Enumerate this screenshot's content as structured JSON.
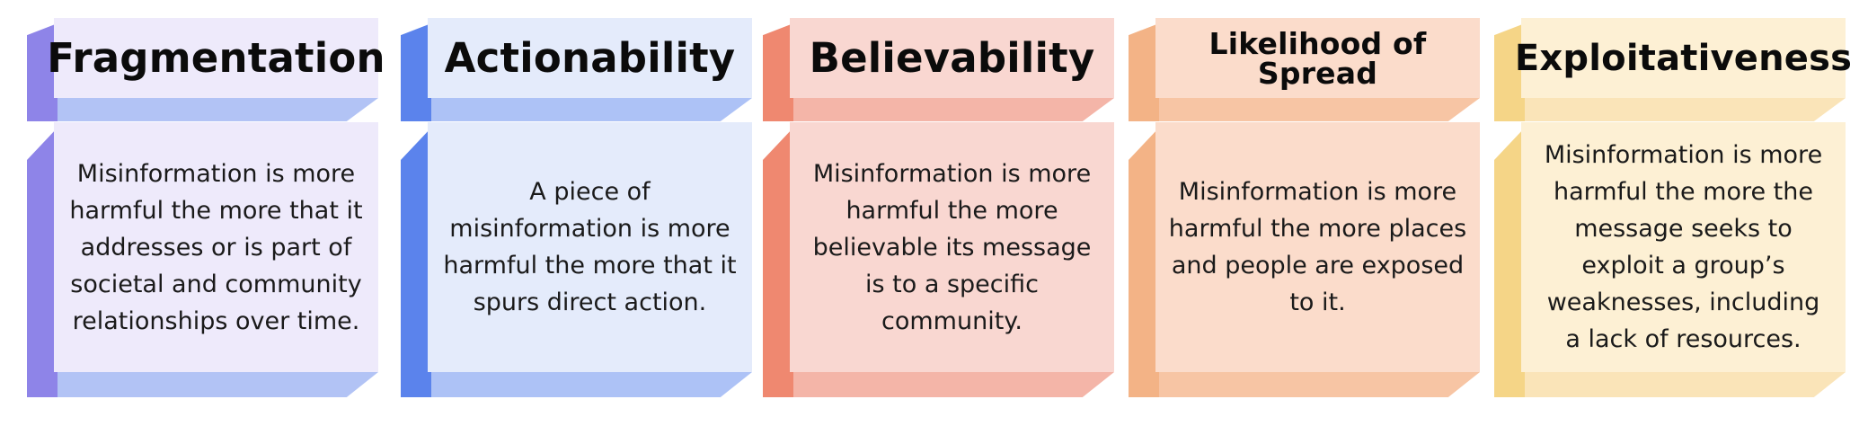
{
  "criteria": [
    {
      "title": "Fragmentation",
      "description": "Misinformation is more\nharmful the more that it\naddresses or is part of\nsocietal and community\nrelationships over time.",
      "colors": {
        "face": "#eeeafb",
        "side": "#8e84e8",
        "bottom": "#b2c3f5"
      }
    },
    {
      "title": "Actionability",
      "description": "A piece of\nmisinformation is more\nharmful the more that it\nspurs direct action.",
      "colors": {
        "face": "#e4ebfb",
        "side": "#5b83ec",
        "bottom": "#adc2f6"
      }
    },
    {
      "title": "Believability",
      "description": "Misinformation is more\nharmful the more\nbelievable its message\nis to a specific\ncommunity.",
      "colors": {
        "face": "#f9d7d1",
        "side": "#ef8870",
        "bottom": "#f4b5a8"
      }
    },
    {
      "title": "Likelihood of\nSpread",
      "description": "Misinformation is more\nharmful the more places\nand people are exposed\nto it.",
      "colors": {
        "face": "#fbdccb",
        "side": "#f3b386",
        "bottom": "#f7c5a4"
      }
    },
    {
      "title": "Exploitativeness",
      "description": "Misinformation is more\nharmful the more the\nmessage seeks to\nexploit a group’s\nweaknesses, including\na lack of resources.",
      "colors": {
        "face": "#fdf0d4",
        "side": "#f5d587",
        "bottom": "#fae4b8"
      }
    }
  ]
}
